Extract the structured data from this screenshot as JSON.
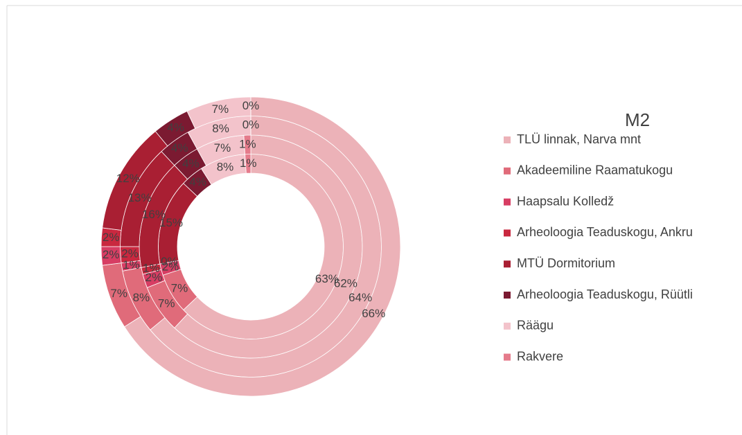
{
  "chart_data": {
    "type": "multi-donut",
    "legend_title": "M2",
    "legend": "right",
    "categories": [
      "TLÜ linnak, Narva mnt",
      "Akadeemiline Raamatukogu",
      "Haapsalu Kolledž",
      "Arheoloogia Teaduskogu, Ankru",
      "MTÜ Dormitorium",
      "Arheoloogia Teaduskogu, Rüütli",
      "Räägu",
      "Rakvere"
    ],
    "colors": [
      "#ecb2b8",
      "#e06b7a",
      "#d73d63",
      "#c9283f",
      "#a91f33",
      "#7b1a31",
      "#f3c3cb",
      "#e57b8b"
    ],
    "series": [
      {
        "values": [
          63,
          7,
          2,
          0,
          15,
          4,
          8,
          1
        ],
        "value_labels": [
          "63%",
          "7%",
          "2%",
          "0%",
          "15%",
          "4%",
          "8%",
          "1%"
        ]
      },
      {
        "values": [
          62,
          7,
          2,
          1,
          16,
          4,
          7,
          1
        ],
        "value_labels": [
          "62%",
          "7%",
          "2%",
          "1%",
          "16%",
          "4%",
          "7%",
          "1%"
        ]
      },
      {
        "values": [
          64,
          8,
          1,
          2,
          13,
          4,
          8,
          0
        ],
        "value_labels": [
          "64%",
          "8%",
          "1%",
          "2%",
          "13%",
          "4%",
          "8%",
          "0%"
        ]
      },
      {
        "values": [
          66,
          7,
          2,
          2,
          12,
          4,
          7,
          0
        ],
        "value_labels": [
          "66%",
          "7%",
          "2%",
          "2%",
          "12%",
          "4%",
          "7%",
          "0%"
        ]
      }
    ]
  }
}
